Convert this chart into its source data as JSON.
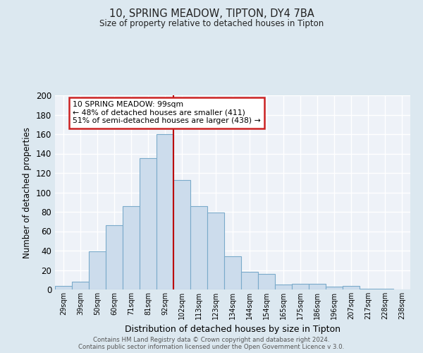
{
  "title": "10, SPRING MEADOW, TIPTON, DY4 7BA",
  "subtitle": "Size of property relative to detached houses in Tipton",
  "xlabel": "Distribution of detached houses by size in Tipton",
  "ylabel": "Number of detached properties",
  "bar_labels": [
    "29sqm",
    "39sqm",
    "50sqm",
    "60sqm",
    "71sqm",
    "81sqm",
    "92sqm",
    "102sqm",
    "113sqm",
    "123sqm",
    "134sqm",
    "144sqm",
    "154sqm",
    "165sqm",
    "175sqm",
    "186sqm",
    "196sqm",
    "207sqm",
    "217sqm",
    "228sqm",
    "238sqm"
  ],
  "bar_values": [
    4,
    8,
    39,
    66,
    86,
    135,
    160,
    113,
    86,
    79,
    34,
    18,
    16,
    5,
    6,
    6,
    3,
    4,
    1,
    1,
    0
  ],
  "bar_color": "#ccdcec",
  "bar_edge_color": "#7aaaca",
  "property_line_x": 6.5,
  "property_line_color": "#bb0000",
  "annotation_title": "10 SPRING MEADOW: 99sqm",
  "annotation_line1": "← 48% of detached houses are smaller (411)",
  "annotation_line2": "51% of semi-detached houses are larger (438) →",
  "annotation_box_color": "#ffffff",
  "annotation_box_edge": "#cc2222",
  "ylim": [
    0,
    200
  ],
  "yticks": [
    0,
    20,
    40,
    60,
    80,
    100,
    120,
    140,
    160,
    180,
    200
  ],
  "background_color": "#dce8f0",
  "plot_background_color": "#eef2f8",
  "grid_color": "#ffffff",
  "footer1": "Contains HM Land Registry data © Crown copyright and database right 2024.",
  "footer2": "Contains public sector information licensed under the Open Government Licence v 3.0."
}
